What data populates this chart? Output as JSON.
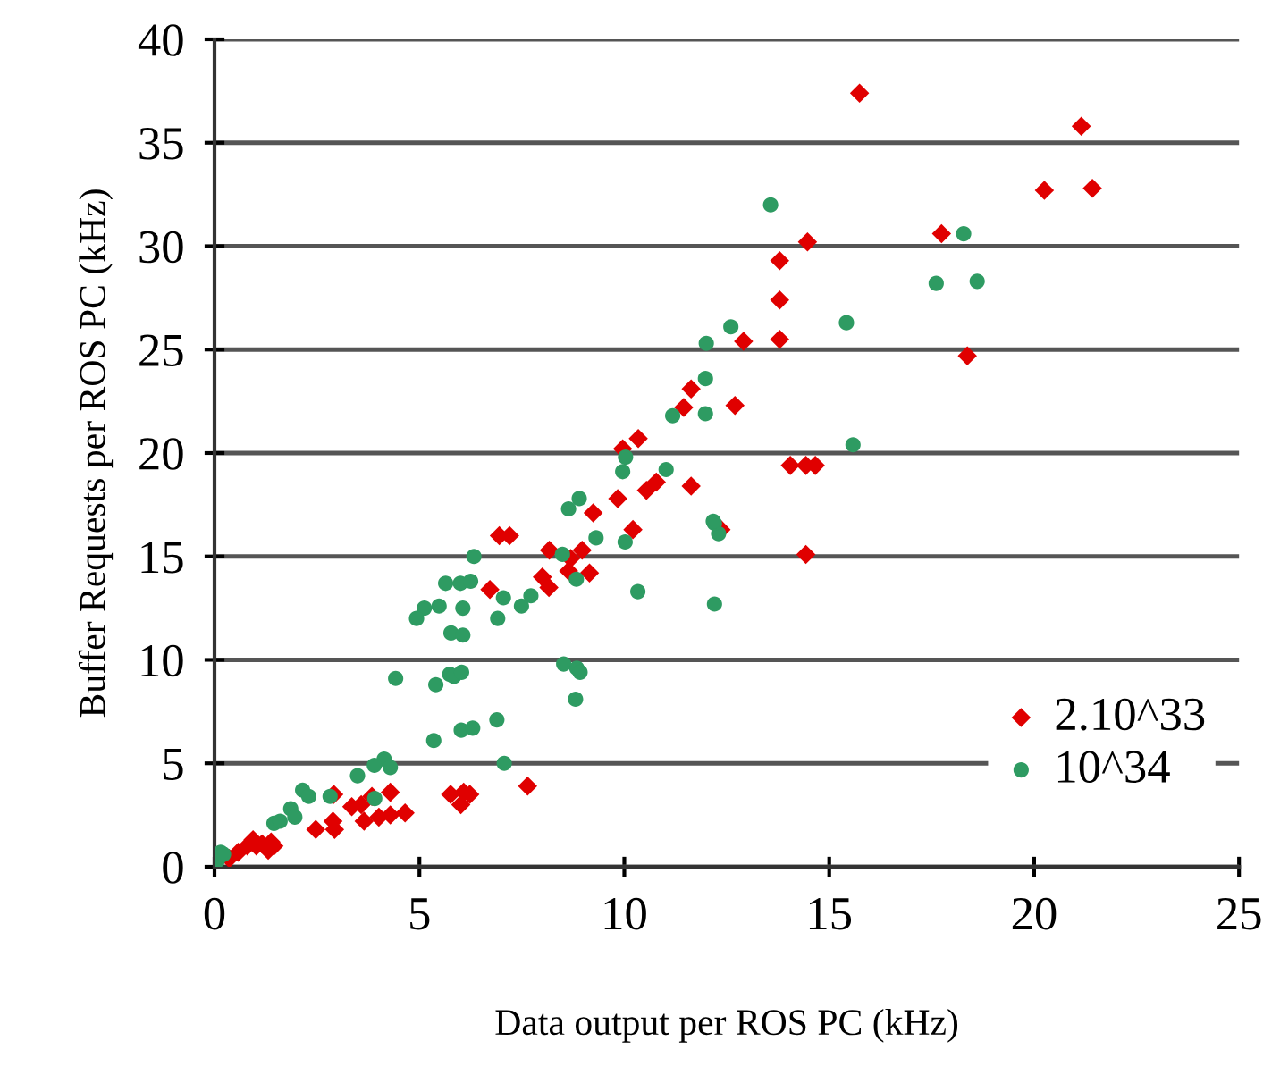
{
  "chart_data": {
    "type": "scatter",
    "xlabel": "Data output per ROS PC (kHz)",
    "ylabel": "Buffer Requests per ROS PC (kHz)",
    "xlim": [
      0,
      25
    ],
    "ylim": [
      0,
      40
    ],
    "xticks": [
      0,
      5,
      10,
      15,
      20,
      25
    ],
    "yticks": [
      0,
      5,
      10,
      15,
      20,
      25,
      30,
      35,
      40
    ],
    "grid": "y",
    "legend": "bottom right",
    "series": [
      {
        "name": "2.10^33",
        "color": "#e00000",
        "marker": "diamond",
        "x": [
          15.74,
          21.15,
          20.25,
          21.42,
          14.47,
          17.74,
          13.79,
          13.79,
          12.91,
          13.79,
          18.37,
          12.7,
          14.05,
          14.43,
          14.66,
          14.43,
          11.63,
          11.45,
          10.34,
          9.96,
          10.78,
          10.54,
          11.63,
          9.84,
          9.24,
          12.36,
          10.21,
          6.95,
          7.2,
          8.17,
          8.97,
          8.69,
          8.64,
          9.15,
          8.0,
          8.16,
          6.72,
          7.64,
          5.76,
          6.08,
          6.23,
          6.01,
          4.29,
          3.84,
          3.35,
          3.58,
          3.65,
          4.01,
          4.29,
          4.65,
          2.91,
          2.89,
          2.93,
          2.47,
          1.31,
          1.16,
          1.02,
          0.8,
          0.58,
          0.36,
          1.38,
          0.94,
          1.45
        ],
        "values": [
          37.4,
          35.8,
          32.7,
          32.8,
          30.2,
          30.6,
          29.3,
          27.4,
          25.4,
          25.5,
          24.7,
          22.3,
          19.4,
          19.4,
          19.4,
          15.1,
          23.1,
          22.2,
          20.7,
          20.2,
          18.6,
          18.2,
          18.4,
          17.8,
          17.1,
          16.3,
          16.3,
          16.0,
          16.0,
          15.3,
          15.3,
          14.9,
          14.3,
          14.2,
          14.0,
          13.5,
          13.4,
          3.9,
          3.5,
          3.6,
          3.5,
          3.0,
          3.6,
          3.4,
          2.9,
          3.0,
          2.2,
          2.4,
          2.5,
          2.6,
          3.5,
          2.2,
          1.8,
          1.8,
          0.8,
          1.1,
          1.0,
          1.0,
          0.7,
          0.4,
          1.2,
          1.3,
          1.0
        ]
      },
      {
        "name": "10^34",
        "color": "#2e9b62",
        "marker": "circle",
        "x": [
          13.57,
          18.28,
          17.61,
          18.61,
          12.6,
          15.42,
          15.58,
          12.3,
          12.2,
          12.2,
          12.0,
          11.98,
          11.98,
          11.18,
          10.03,
          9.96,
          11.02,
          8.9,
          8.64,
          12.17,
          9.31,
          10.02,
          6.33,
          8.49,
          8.83,
          10.33,
          5.64,
          6.0,
          6.25,
          7.05,
          7.72,
          7.49,
          5.12,
          5.48,
          6.06,
          4.93,
          6.91,
          5.77,
          6.06,
          4.42,
          5.4,
          5.74,
          5.84,
          6.03,
          8.52,
          8.84,
          8.92,
          8.81,
          6.89,
          6.02,
          6.3,
          5.35,
          7.07,
          4.14,
          4.29,
          3.9,
          3.49,
          3.91,
          2.82,
          2.15,
          2.3,
          1.86,
          1.96,
          1.45,
          1.6,
          0.15,
          0.07,
          0.22
        ],
        "values": [
          32.0,
          30.6,
          28.2,
          28.3,
          26.1,
          26.3,
          20.4,
          16.1,
          16.6,
          12.7,
          25.3,
          23.6,
          21.9,
          21.8,
          19.8,
          19.1,
          19.2,
          17.8,
          17.3,
          16.7,
          15.9,
          15.7,
          15.0,
          15.1,
          13.9,
          13.3,
          13.7,
          13.7,
          13.8,
          13.0,
          13.1,
          12.6,
          12.5,
          12.6,
          12.5,
          12.0,
          12.0,
          11.3,
          11.2,
          9.1,
          8.8,
          9.3,
          9.2,
          9.4,
          9.8,
          9.6,
          9.4,
          8.1,
          7.1,
          6.6,
          6.7,
          6.1,
          5.0,
          5.2,
          4.8,
          4.9,
          4.4,
          3.3,
          3.4,
          3.7,
          3.4,
          2.8,
          2.4,
          2.1,
          2.2,
          0.7,
          0.3,
          0.6
        ]
      }
    ]
  }
}
